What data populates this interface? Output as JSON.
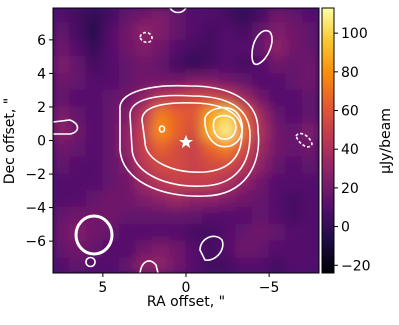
{
  "chart_data": {
    "type": "image",
    "xlabel": "RA offset, \"",
    "ylabel": "Dec offset, \"",
    "colorbar_label": "μJy/beam",
    "colormap": "inferno",
    "xlim": [
      8,
      -8
    ],
    "ylim": [
      -7.9,
      7.9
    ],
    "xticks": [
      5,
      0,
      {
        "value": -5,
        "label": "−5"
      }
    ],
    "yticks": [
      {
        "value": -6,
        "label": "−6"
      },
      {
        "value": -4,
        "label": "−4"
      },
      {
        "value": -2,
        "label": "−2"
      },
      0,
      2,
      4,
      6
    ],
    "clim": [
      -24,
      113
    ],
    "cticks": [
      {
        "value": -20,
        "label": "−20"
      },
      0,
      20,
      40,
      60,
      80,
      100
    ],
    "x": [
      7.5,
      6.5,
      5.5,
      4.5,
      3.5,
      2.5,
      1.5,
      0.5,
      -0.5,
      -1.5,
      -2.5,
      -3.5,
      -4.5,
      -5.5,
      -6.5,
      -7.5
    ],
    "y": [
      7.5,
      6.5,
      5.5,
      4.5,
      3.5,
      2.5,
      1.5,
      0.5,
      -0.5,
      -1.5,
      -2.5,
      -3.5,
      -4.5,
      -5.5,
      -6.5,
      -7.5
    ],
    "z": [
      [
        10,
        5,
        0,
        5,
        15,
        20,
        25,
        15,
        10,
        10,
        5,
        0,
        5,
        20,
        15,
        10
      ],
      [
        15,
        5,
        -5,
        10,
        20,
        30,
        25,
        15,
        10,
        5,
        10,
        5,
        15,
        25,
        20,
        15
      ],
      [
        20,
        10,
        0,
        10,
        20,
        25,
        20,
        10,
        5,
        5,
        10,
        10,
        15,
        30,
        20,
        15
      ],
      [
        25,
        15,
        5,
        10,
        15,
        20,
        15,
        5,
        0,
        5,
        10,
        5,
        10,
        20,
        15,
        20
      ],
      [
        20,
        15,
        10,
        10,
        15,
        20,
        20,
        20,
        25,
        25,
        20,
        15,
        10,
        10,
        15,
        20
      ],
      [
        15,
        10,
        10,
        15,
        20,
        30,
        45,
        50,
        55,
        55,
        50,
        35,
        20,
        10,
        10,
        15
      ],
      [
        25,
        15,
        10,
        15,
        25,
        45,
        75,
        65,
        60,
        85,
        100,
        65,
        35,
        15,
        10,
        15
      ],
      [
        30,
        20,
        10,
        15,
        30,
        50,
        80,
        65,
        55,
        90,
        110,
        70,
        40,
        20,
        15,
        25
      ],
      [
        20,
        15,
        10,
        15,
        30,
        50,
        65,
        55,
        50,
        65,
        75,
        55,
        35,
        20,
        15,
        20
      ],
      [
        15,
        10,
        10,
        15,
        25,
        45,
        55,
        55,
        50,
        55,
        55,
        45,
        30,
        15,
        10,
        15
      ],
      [
        10,
        10,
        10,
        15,
        20,
        35,
        45,
        50,
        50,
        50,
        40,
        30,
        20,
        10,
        10,
        10
      ],
      [
        10,
        10,
        15,
        20,
        20,
        25,
        30,
        35,
        30,
        30,
        25,
        20,
        15,
        10,
        5,
        10
      ],
      [
        15,
        20,
        20,
        20,
        15,
        15,
        15,
        15,
        15,
        10,
        10,
        10,
        15,
        10,
        5,
        10
      ],
      [
        20,
        25,
        20,
        15,
        10,
        10,
        10,
        10,
        5,
        5,
        10,
        15,
        20,
        15,
        10,
        10
      ],
      [
        15,
        20,
        15,
        10,
        10,
        20,
        25,
        20,
        10,
        5,
        10,
        20,
        15,
        10,
        10,
        10
      ],
      [
        10,
        15,
        10,
        10,
        15,
        30,
        30,
        20,
        10,
        5,
        5,
        10,
        10,
        5,
        10,
        10
      ]
    ]
  }
}
